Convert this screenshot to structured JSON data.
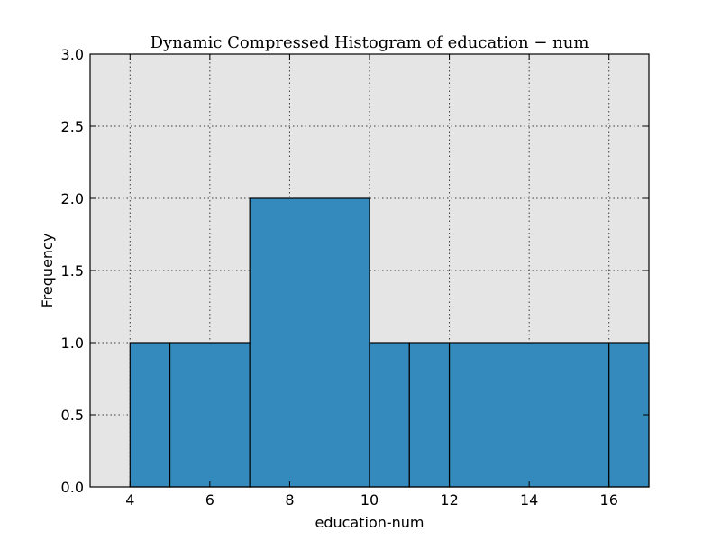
{
  "chart_data": {
    "type": "bar",
    "title": "Dynamic Compressed Histogram of education − num",
    "xlabel": "education-num",
    "ylabel": "Frequency",
    "xlim": [
      3,
      17
    ],
    "ylim": [
      0,
      3.0
    ],
    "xticks": [
      4,
      6,
      8,
      10,
      12,
      14,
      16
    ],
    "xtick_labels": [
      "4",
      "6",
      "8",
      "10",
      "12",
      "14",
      "16"
    ],
    "yticks": [
      0,
      0.5,
      1.0,
      1.5,
      2.0,
      2.5,
      3.0
    ],
    "ytick_labels": [
      "0.0",
      "0.5",
      "1.0",
      "1.5",
      "2.0",
      "2.5",
      "3.0"
    ],
    "grid": true,
    "bins": [
      {
        "left": 4,
        "right": 5,
        "value": 1
      },
      {
        "left": 5,
        "right": 7,
        "value": 1
      },
      {
        "left": 7,
        "right": 10,
        "value": 2
      },
      {
        "left": 10,
        "right": 11,
        "value": 1
      },
      {
        "left": 11,
        "right": 12,
        "value": 1
      },
      {
        "left": 12,
        "right": 16,
        "value": 1
      },
      {
        "left": 16,
        "right": 17,
        "value": 1
      }
    ],
    "colors": {
      "bar": "#348abd",
      "background": "#e5e5e5"
    }
  }
}
